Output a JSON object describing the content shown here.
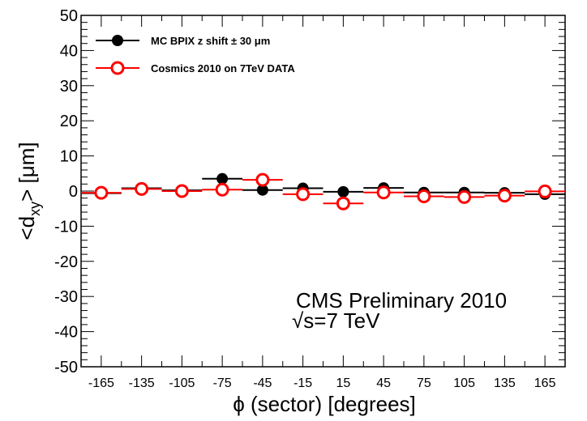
{
  "chart_data": {
    "type": "scatter",
    "xlabel": "ϕ (sector) [degrees]",
    "ylabel": "<dxy> [μm]",
    "ylabel_parts": {
      "main": "<d",
      "sub": "xy",
      "tail": "> [μm]"
    },
    "xlim": [
      -180,
      180
    ],
    "ylim": [
      -50,
      50
    ],
    "x_ticks": [
      -165,
      -135,
      -105,
      -75,
      -45,
      -15,
      15,
      45,
      75,
      105,
      135,
      165
    ],
    "y_ticks": [
      -50,
      -40,
      -30,
      -20,
      -10,
      0,
      10,
      20,
      30,
      40,
      50
    ],
    "grid": false,
    "legend_position": "top-left",
    "series": [
      {
        "name": "MC BPIX z shift ± 30 μm",
        "marker": "filled-circle",
        "color": "#000000",
        "x": [
          -165,
          -135,
          -105,
          -75,
          -45,
          -15,
          15,
          45,
          75,
          105,
          135,
          165
        ],
        "y": [
          -0.6,
          0.8,
          0.2,
          3.5,
          0.3,
          0.8,
          -0.2,
          0.9,
          -0.4,
          -0.4,
          -0.5,
          -0.9
        ],
        "x_err": 15
      },
      {
        "name": "Cosmics 2010 on 7TeV DATA",
        "marker": "open-circle",
        "color": "#ff0000",
        "x": [
          -165,
          -135,
          -105,
          -75,
          -45,
          -15,
          15,
          45,
          75,
          105,
          135,
          165
        ],
        "y": [
          -0.5,
          0.6,
          0.0,
          0.4,
          3.2,
          -0.9,
          -3.5,
          -0.4,
          -1.5,
          -1.7,
          -1.3,
          -0.1
        ],
        "x_err": 15
      }
    ],
    "annotations": [
      "CMS Preliminary 2010",
      "√s=7 TeV"
    ]
  }
}
